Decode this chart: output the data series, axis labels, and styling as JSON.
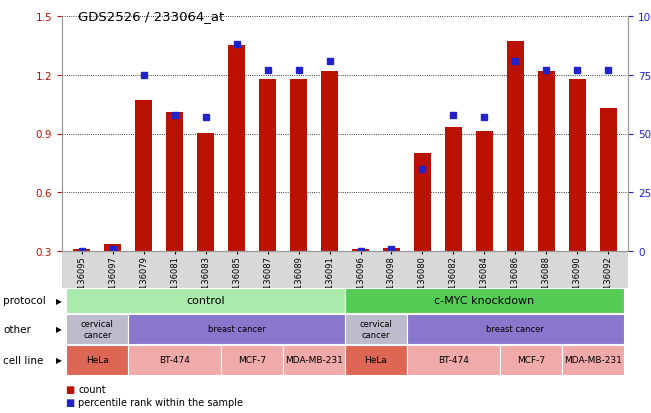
{
  "title": "GDS2526 / 233064_at",
  "samples": [
    "GSM136095",
    "GSM136097",
    "GSM136079",
    "GSM136081",
    "GSM136083",
    "GSM136085",
    "GSM136087",
    "GSM136089",
    "GSM136091",
    "GSM136096",
    "GSM136098",
    "GSM136080",
    "GSM136082",
    "GSM136084",
    "GSM136086",
    "GSM136088",
    "GSM136090",
    "GSM136092"
  ],
  "bar_values": [
    0.31,
    0.335,
    1.07,
    1.01,
    0.905,
    1.35,
    1.18,
    1.18,
    1.22,
    0.31,
    0.315,
    0.8,
    0.935,
    0.915,
    1.37,
    1.22,
    1.18,
    1.03
  ],
  "pct_values": [
    0,
    1,
    75,
    58,
    57,
    88,
    77,
    77,
    81,
    0,
    1,
    35,
    58,
    57,
    81,
    77,
    77,
    77
  ],
  "bar_color": "#bb1100",
  "dot_color": "#2222cc",
  "ylim_left": [
    0.3,
    1.5
  ],
  "ylim_right": [
    0,
    100
  ],
  "yticks_left": [
    0.3,
    0.6,
    0.9,
    1.2,
    1.5
  ],
  "yticks_right": [
    0,
    25,
    50,
    75,
    100
  ],
  "protocol_labels": [
    "control",
    "c-MYC knockdown"
  ],
  "protocol_colors": [
    "#aaeaaa",
    "#55cc55"
  ],
  "other_spans": [
    {
      "start": 0,
      "end": 2,
      "label": "cervical\ncancer",
      "color": "#bbbbcc"
    },
    {
      "start": 2,
      "end": 9,
      "label": "breast cancer",
      "color": "#8877cc"
    },
    {
      "start": 9,
      "end": 11,
      "label": "cervical\ncancer",
      "color": "#bbbbcc"
    },
    {
      "start": 11,
      "end": 18,
      "label": "breast cancer",
      "color": "#8877cc"
    }
  ],
  "cell_line_spans": [
    {
      "start": 0,
      "end": 2,
      "label": "HeLa",
      "color": "#dd6655"
    },
    {
      "start": 2,
      "end": 5,
      "label": "BT-474",
      "color": "#f0aaaa"
    },
    {
      "start": 5,
      "end": 7,
      "label": "MCF-7",
      "color": "#f0aaaa"
    },
    {
      "start": 7,
      "end": 9,
      "label": "MDA-MB-231",
      "color": "#f0aaaa"
    },
    {
      "start": 9,
      "end": 11,
      "label": "HeLa",
      "color": "#dd6655"
    },
    {
      "start": 11,
      "end": 14,
      "label": "BT-474",
      "color": "#f0aaaa"
    },
    {
      "start": 14,
      "end": 16,
      "label": "MCF-7",
      "color": "#f0aaaa"
    },
    {
      "start": 16,
      "end": 18,
      "label": "MDA-MB-231",
      "color": "#f0aaaa"
    }
  ],
  "row_labels": [
    "protocol",
    "other",
    "cell line"
  ],
  "background_color": "#ffffff"
}
